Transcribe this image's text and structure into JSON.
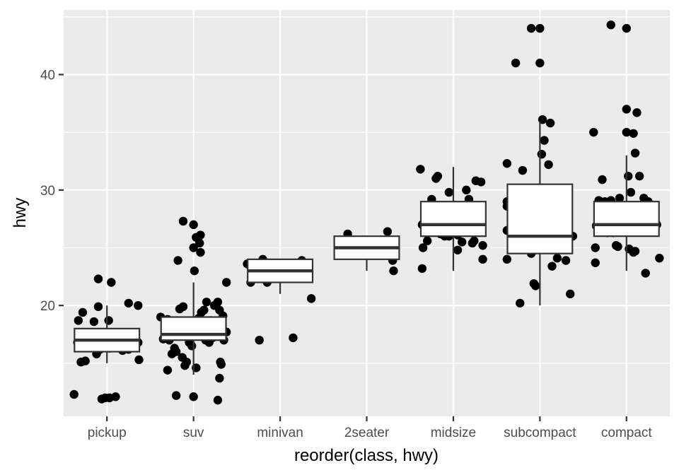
{
  "chart_data": {
    "type": "boxplot",
    "xlabel": "reorder(class, hwy)",
    "ylabel": "hwy",
    "ylim": [
      10.4,
      45.6
    ],
    "yticks": [
      20,
      30,
      40
    ],
    "grid": true,
    "legend": "none",
    "colors": {
      "panel": "#ebebeb",
      "grid_major": "#ffffff",
      "box_fill": "#ffffff",
      "box_line": "#333333",
      "point": "#000000",
      "tick_text": "#4d4d4d"
    },
    "categories": [
      "pickup",
      "suv",
      "minivan",
      "2seater",
      "midsize",
      "subcompact",
      "compact"
    ],
    "boxes": [
      {
        "category": "pickup",
        "whisker_low": 15,
        "q1": 16,
        "median": 17,
        "q3": 18,
        "whisker_high": 20
      },
      {
        "category": "suv",
        "whisker_low": 14,
        "q1": 17,
        "median": 17.5,
        "q3": 19,
        "whisker_high": 22
      },
      {
        "category": "minivan",
        "whisker_low": 21,
        "q1": 22,
        "median": 23,
        "q3": 24,
        "whisker_high": 24
      },
      {
        "category": "2seater",
        "whisker_low": 23,
        "q1": 24,
        "median": 25,
        "q3": 26,
        "whisker_high": 26
      },
      {
        "category": "midsize",
        "whisker_low": 23,
        "q1": 26,
        "median": 27,
        "q3": 29,
        "whisker_high": 32
      },
      {
        "category": "subcompact",
        "whisker_low": 20,
        "q1": 24.5,
        "median": 26,
        "q3": 30.5,
        "whisker_high": 36
      },
      {
        "category": "compact",
        "whisker_low": 23,
        "q1": 26,
        "median": 27,
        "q3": 29,
        "whisker_high": 33
      }
    ],
    "points": [
      {
        "x": "pickup",
        "jitter": -0.38,
        "y": 12.3
      },
      {
        "x": "pickup",
        "jitter": -0.34,
        "y": 16.8
      },
      {
        "x": "pickup",
        "jitter": -0.33,
        "y": 18.7
      },
      {
        "x": "pickup",
        "jitter": -0.28,
        "y": 19.4
      },
      {
        "x": "pickup",
        "jitter": -0.3,
        "y": 15.1
      },
      {
        "x": "pickup",
        "jitter": -0.25,
        "y": 15.2
      },
      {
        "x": "pickup",
        "jitter": -0.2,
        "y": 17.1
      },
      {
        "x": "pickup",
        "jitter": -0.1,
        "y": 22.3
      },
      {
        "x": "pickup",
        "jitter": -0.18,
        "y": 16.4
      },
      {
        "x": "pickup",
        "jitter": -0.05,
        "y": 17.4
      },
      {
        "x": "pickup",
        "jitter": -0.12,
        "y": 15.8
      },
      {
        "x": "pickup",
        "jitter": -0.08,
        "y": 16.2
      },
      {
        "x": "pickup",
        "jitter": -0.02,
        "y": 12.0
      },
      {
        "x": "pickup",
        "jitter": -0.06,
        "y": 11.9
      },
      {
        "x": "pickup",
        "jitter": 0.03,
        "y": 12.0
      },
      {
        "x": "pickup",
        "jitter": 0.1,
        "y": 12.1
      },
      {
        "x": "pickup",
        "jitter": -0.1,
        "y": 19.9
      },
      {
        "x": "pickup",
        "jitter": -0.15,
        "y": 18.6
      },
      {
        "x": "pickup",
        "jitter": 0.02,
        "y": 18.7
      },
      {
        "x": "pickup",
        "jitter": 0.03,
        "y": 16.3
      },
      {
        "x": "pickup",
        "jitter": 0.05,
        "y": 22.0
      },
      {
        "x": "pickup",
        "jitter": 0.1,
        "y": 17.3
      },
      {
        "x": "pickup",
        "jitter": 0.14,
        "y": 16.8
      },
      {
        "x": "pickup",
        "jitter": 0.18,
        "y": 16.1
      },
      {
        "x": "pickup",
        "jitter": 0.25,
        "y": 16.2
      },
      {
        "x": "pickup",
        "jitter": 0.25,
        "y": 20.2
      },
      {
        "x": "pickup",
        "jitter": 0.3,
        "y": 16.7
      },
      {
        "x": "pickup",
        "jitter": 0.36,
        "y": 20.0
      },
      {
        "x": "pickup",
        "jitter": 0.36,
        "y": 16.8
      },
      {
        "x": "pickup",
        "jitter": 0.37,
        "y": 15.3
      },
      {
        "x": "suv",
        "jitter": -0.38,
        "y": 19.0
      },
      {
        "x": "suv",
        "jitter": -0.35,
        "y": 17.1
      },
      {
        "x": "suv",
        "jitter": -0.3,
        "y": 18.8
      },
      {
        "x": "suv",
        "jitter": -0.28,
        "y": 17.0
      },
      {
        "x": "suv",
        "jitter": -0.3,
        "y": 14.4
      },
      {
        "x": "suv",
        "jitter": -0.25,
        "y": 15.8
      },
      {
        "x": "suv",
        "jitter": -0.22,
        "y": 16.3
      },
      {
        "x": "suv",
        "jitter": -0.2,
        "y": 12.2
      },
      {
        "x": "suv",
        "jitter": -0.16,
        "y": 19.7
      },
      {
        "x": "suv",
        "jitter": -0.2,
        "y": 16.0
      },
      {
        "x": "suv",
        "jitter": -0.18,
        "y": 23.9
      },
      {
        "x": "suv",
        "jitter": -0.12,
        "y": 27.3
      },
      {
        "x": "suv",
        "jitter": -0.12,
        "y": 19.9
      },
      {
        "x": "suv",
        "jitter": -0.13,
        "y": 15.5
      },
      {
        "x": "suv",
        "jitter": -0.1,
        "y": 14.8
      },
      {
        "x": "suv",
        "jitter": -0.08,
        "y": 15.1
      },
      {
        "x": "suv",
        "jitter": -0.05,
        "y": 16.8
      },
      {
        "x": "suv",
        "jitter": -0.05,
        "y": 17.7
      },
      {
        "x": "suv",
        "jitter": -0.02,
        "y": 16.5
      },
      {
        "x": "suv",
        "jitter": 0.0,
        "y": 12.1
      },
      {
        "x": "suv",
        "jitter": 0.0,
        "y": 27.0
      },
      {
        "x": "suv",
        "jitter": 0.0,
        "y": 25.0
      },
      {
        "x": "suv",
        "jitter": 0.01,
        "y": 23.0
      },
      {
        "x": "suv",
        "jitter": 0.03,
        "y": 14.6
      },
      {
        "x": "suv",
        "jitter": 0.03,
        "y": 25.9
      },
      {
        "x": "suv",
        "jitter": 0.06,
        "y": 18.9
      },
      {
        "x": "suv",
        "jitter": 0.07,
        "y": 25.4
      },
      {
        "x": "suv",
        "jitter": 0.08,
        "y": 24.6
      },
      {
        "x": "suv",
        "jitter": 0.08,
        "y": 26.1
      },
      {
        "x": "suv",
        "jitter": 0.09,
        "y": 19.4
      },
      {
        "x": "suv",
        "jitter": 0.12,
        "y": 19.6
      },
      {
        "x": "suv",
        "jitter": 0.15,
        "y": 20.3
      },
      {
        "x": "suv",
        "jitter": 0.14,
        "y": 17.0
      },
      {
        "x": "suv",
        "jitter": 0.18,
        "y": 16.8
      },
      {
        "x": "suv",
        "jitter": 0.2,
        "y": 18.7
      },
      {
        "x": "suv",
        "jitter": 0.22,
        "y": 17.2
      },
      {
        "x": "suv",
        "jitter": 0.24,
        "y": 20.0
      },
      {
        "x": "suv",
        "jitter": 0.28,
        "y": 20.3
      },
      {
        "x": "suv",
        "jitter": 0.28,
        "y": 18.4
      },
      {
        "x": "suv",
        "jitter": 0.3,
        "y": 19.6
      },
      {
        "x": "suv",
        "jitter": 0.34,
        "y": 19.1
      },
      {
        "x": "suv",
        "jitter": 0.33,
        "y": 17.9
      },
      {
        "x": "suv",
        "jitter": 0.28,
        "y": 11.8
      },
      {
        "x": "suv",
        "jitter": 0.3,
        "y": 13.7
      },
      {
        "x": "suv",
        "jitter": 0.32,
        "y": 14.9
      },
      {
        "x": "suv",
        "jitter": 0.31,
        "y": 15.1
      },
      {
        "x": "suv",
        "jitter": 0.35,
        "y": 17.0
      },
      {
        "x": "suv",
        "jitter": 0.38,
        "y": 17.7
      },
      {
        "x": "suv",
        "jitter": 0.38,
        "y": 22.0
      },
      {
        "x": "minivan",
        "jitter": -0.38,
        "y": 23.6
      },
      {
        "x": "minivan",
        "jitter": -0.34,
        "y": 22.0
      },
      {
        "x": "minivan",
        "jitter": -0.2,
        "y": 24.0
      },
      {
        "x": "minivan",
        "jitter": -0.15,
        "y": 22.0
      },
      {
        "x": "minivan",
        "jitter": -0.24,
        "y": 17.0
      },
      {
        "x": "minivan",
        "jitter": 0.15,
        "y": 17.2
      },
      {
        "x": "minivan",
        "jitter": 0.25,
        "y": 23.9
      },
      {
        "x": "minivan",
        "jitter": 0.36,
        "y": 20.6
      },
      {
        "x": "2seater",
        "jitter": -0.22,
        "y": 26.2
      },
      {
        "x": "2seater",
        "jitter": 0.24,
        "y": 26.4
      },
      {
        "x": "2seater",
        "jitter": 0.3,
        "y": 23.9
      },
      {
        "x": "2seater",
        "jitter": 0.31,
        "y": 23.0
      },
      {
        "x": "midsize",
        "jitter": -0.38,
        "y": 31.8
      },
      {
        "x": "midsize",
        "jitter": -0.36,
        "y": 27.0
      },
      {
        "x": "midsize",
        "jitter": -0.36,
        "y": 23.2
      },
      {
        "x": "midsize",
        "jitter": -0.35,
        "y": 25.0
      },
      {
        "x": "midsize",
        "jitter": -0.32,
        "y": 26.3
      },
      {
        "x": "midsize",
        "jitter": -0.3,
        "y": 25.6
      },
      {
        "x": "midsize",
        "jitter": -0.28,
        "y": 28.1
      },
      {
        "x": "midsize",
        "jitter": -0.25,
        "y": 29.2
      },
      {
        "x": "midsize",
        "jitter": -0.24,
        "y": 27.2
      },
      {
        "x": "midsize",
        "jitter": -0.2,
        "y": 31.0
      },
      {
        "x": "midsize",
        "jitter": -0.18,
        "y": 31.2
      },
      {
        "x": "midsize",
        "jitter": -0.17,
        "y": 26.7
      },
      {
        "x": "midsize",
        "jitter": -0.15,
        "y": 26.2
      },
      {
        "x": "midsize",
        "jitter": -0.12,
        "y": 28.4
      },
      {
        "x": "midsize",
        "jitter": -0.1,
        "y": 26.0
      },
      {
        "x": "midsize",
        "jitter": -0.08,
        "y": 26.6
      },
      {
        "x": "midsize",
        "jitter": -0.05,
        "y": 26.0
      },
      {
        "x": "midsize",
        "jitter": -0.05,
        "y": 29.8
      },
      {
        "x": "midsize",
        "jitter": 0.02,
        "y": 28.7
      },
      {
        "x": "midsize",
        "jitter": 0.05,
        "y": 26.1
      },
      {
        "x": "midsize",
        "jitter": 0.05,
        "y": 24.8
      },
      {
        "x": "midsize",
        "jitter": 0.1,
        "y": 25.5
      },
      {
        "x": "midsize",
        "jitter": 0.12,
        "y": 26.6
      },
      {
        "x": "midsize",
        "jitter": 0.14,
        "y": 27.0
      },
      {
        "x": "midsize",
        "jitter": 0.15,
        "y": 30.0
      },
      {
        "x": "midsize",
        "jitter": 0.18,
        "y": 29.2
      },
      {
        "x": "midsize",
        "jitter": 0.22,
        "y": 25.4
      },
      {
        "x": "midsize",
        "jitter": 0.24,
        "y": 25.6
      },
      {
        "x": "midsize",
        "jitter": 0.26,
        "y": 30.8
      },
      {
        "x": "midsize",
        "jitter": 0.28,
        "y": 26.4
      },
      {
        "x": "midsize",
        "jitter": 0.3,
        "y": 28.3
      },
      {
        "x": "midsize",
        "jitter": 0.32,
        "y": 30.7
      },
      {
        "x": "midsize",
        "jitter": 0.33,
        "y": 27.0
      },
      {
        "x": "midsize",
        "jitter": 0.34,
        "y": 25.2
      },
      {
        "x": "midsize",
        "jitter": 0.34,
        "y": 24.0
      },
      {
        "x": "subcompact",
        "jitter": -0.38,
        "y": 32.3
      },
      {
        "x": "subcompact",
        "jitter": -0.38,
        "y": 29.0
      },
      {
        "x": "subcompact",
        "jitter": -0.38,
        "y": 28.6
      },
      {
        "x": "subcompact",
        "jitter": -0.38,
        "y": 26.5
      },
      {
        "x": "subcompact",
        "jitter": -0.38,
        "y": 24.0
      },
      {
        "x": "subcompact",
        "jitter": -0.28,
        "y": 41.0
      },
      {
        "x": "subcompact",
        "jitter": -0.2,
        "y": 31.7
      },
      {
        "x": "subcompact",
        "jitter": -0.1,
        "y": 44.0
      },
      {
        "x": "subcompact",
        "jitter": -0.1,
        "y": 24.5
      },
      {
        "x": "subcompact",
        "jitter": -0.07,
        "y": 21.9
      },
      {
        "x": "subcompact",
        "jitter": -0.23,
        "y": 20.2
      },
      {
        "x": "subcompact",
        "jitter": -0.05,
        "y": 21.7
      },
      {
        "x": "subcompact",
        "jitter": 0.0,
        "y": 44.0
      },
      {
        "x": "subcompact",
        "jitter": 0.0,
        "y": 41.0
      },
      {
        "x": "subcompact",
        "jitter": 0.03,
        "y": 36.1
      },
      {
        "x": "subcompact",
        "jitter": 0.02,
        "y": 33.1
      },
      {
        "x": "subcompact",
        "jitter": 0.05,
        "y": 34.3
      },
      {
        "x": "subcompact",
        "jitter": 0.1,
        "y": 32.2
      },
      {
        "x": "subcompact",
        "jitter": 0.12,
        "y": 35.8
      },
      {
        "x": "subcompact",
        "jitter": 0.14,
        "y": 23.4
      },
      {
        "x": "subcompact",
        "jitter": 0.2,
        "y": 24.1
      },
      {
        "x": "subcompact",
        "jitter": 0.3,
        "y": 23.9
      },
      {
        "x": "subcompact",
        "jitter": 0.35,
        "y": 21.0
      },
      {
        "x": "subcompact",
        "jitter": 0.38,
        "y": 26.0
      },
      {
        "x": "compact",
        "jitter": -0.38,
        "y": 35.0
      },
      {
        "x": "compact",
        "jitter": -0.36,
        "y": 25.0
      },
      {
        "x": "compact",
        "jitter": -0.36,
        "y": 23.7
      },
      {
        "x": "compact",
        "jitter": -0.35,
        "y": 26.9
      },
      {
        "x": "compact",
        "jitter": -0.32,
        "y": 29.1
      },
      {
        "x": "compact",
        "jitter": -0.3,
        "y": 28.1
      },
      {
        "x": "compact",
        "jitter": -0.28,
        "y": 30.9
      },
      {
        "x": "compact",
        "jitter": -0.25,
        "y": 29.0
      },
      {
        "x": "compact",
        "jitter": -0.22,
        "y": 26.3
      },
      {
        "x": "compact",
        "jitter": -0.2,
        "y": 27.7
      },
      {
        "x": "compact",
        "jitter": -0.18,
        "y": 29.1
      },
      {
        "x": "compact",
        "jitter": -0.15,
        "y": 26.3
      },
      {
        "x": "compact",
        "jitter": -0.12,
        "y": 25.2
      },
      {
        "x": "compact",
        "jitter": -0.18,
        "y": 44.3
      },
      {
        "x": "compact",
        "jitter": -0.1,
        "y": 25.1
      },
      {
        "x": "compact",
        "jitter": -0.08,
        "y": 29.3
      },
      {
        "x": "compact",
        "jitter": -0.05,
        "y": 26.4
      },
      {
        "x": "compact",
        "jitter": 0.0,
        "y": 44.0
      },
      {
        "x": "compact",
        "jitter": 0.0,
        "y": 37.0
      },
      {
        "x": "compact",
        "jitter": 0.0,
        "y": 35.0
      },
      {
        "x": "compact",
        "jitter": 0.02,
        "y": 31.2
      },
      {
        "x": "compact",
        "jitter": 0.02,
        "y": 28.4
      },
      {
        "x": "compact",
        "jitter": 0.03,
        "y": 24.9
      },
      {
        "x": "compact",
        "jitter": 0.05,
        "y": 29.8
      },
      {
        "x": "compact",
        "jitter": 0.08,
        "y": 34.9
      },
      {
        "x": "compact",
        "jitter": 0.1,
        "y": 33.2
      },
      {
        "x": "compact",
        "jitter": 0.12,
        "y": 36.7
      },
      {
        "x": "compact",
        "jitter": 0.15,
        "y": 31.2
      },
      {
        "x": "compact",
        "jitter": 0.08,
        "y": 24.6
      },
      {
        "x": "compact",
        "jitter": 0.1,
        "y": 24.7
      },
      {
        "x": "compact",
        "jitter": 0.12,
        "y": 27.5
      },
      {
        "x": "compact",
        "jitter": 0.2,
        "y": 29.3
      },
      {
        "x": "compact",
        "jitter": 0.22,
        "y": 22.8
      },
      {
        "x": "compact",
        "jitter": 0.25,
        "y": 29.0
      },
      {
        "x": "compact",
        "jitter": 0.32,
        "y": 28.2
      },
      {
        "x": "compact",
        "jitter": 0.35,
        "y": 27.0
      },
      {
        "x": "compact",
        "jitter": 0.38,
        "y": 24.1
      }
    ]
  }
}
